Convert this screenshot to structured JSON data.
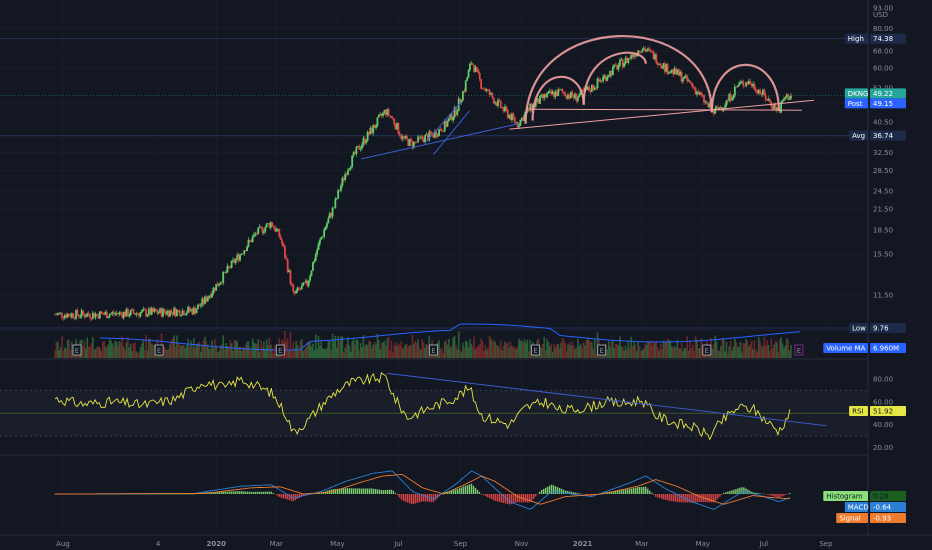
{
  "chart_data": [
    {
      "type": "candlestick",
      "symbol": "DKNG",
      "currency": "USD",
      "y_scale": "log",
      "ylim": [
        8.0,
        93.0
      ],
      "y_ticks": [
        "93.00",
        "80.00",
        "68.00",
        "60.00",
        "52.00",
        "46.50",
        "40.50",
        "36.50",
        "32.50",
        "28.50",
        "24.50",
        "21.50",
        "18.50",
        "15.50",
        "11.50",
        "8.90"
      ],
      "x_ticks": [
        "Aug",
        "4",
        "2020",
        "Mar",
        "May",
        "Jul",
        "Sep",
        "Nov",
        "2021",
        "Mar",
        "May",
        "Jul",
        "Sep"
      ],
      "markers": {
        "high": {
          "label": "High",
          "value": "74.38"
        },
        "low": {
          "label": "Low",
          "value": "9.76"
        },
        "avg": {
          "label": "Avg",
          "value": "36.74"
        },
        "last": {
          "label": "DKNG",
          "value": "49.22"
        },
        "post": {
          "label": "Post",
          "value": "49.15"
        }
      },
      "earnings_flags": [
        "E",
        "E",
        "E",
        "E",
        "E",
        "E",
        "E",
        "E"
      ],
      "close_series": [
        [
          "2019-07-24",
          10.0
        ],
        [
          "2019-09-01",
          10.0
        ],
        [
          "2019-10-15",
          10.1
        ],
        [
          "2019-11-15",
          10.2
        ],
        [
          "2019-12-10",
          10.3
        ],
        [
          "2019-12-20",
          11.0
        ],
        [
          "2020-01-05",
          12.8
        ],
        [
          "2020-01-25",
          15.5
        ],
        [
          "2020-02-10",
          18.0
        ],
        [
          "2020-02-25",
          19.5
        ],
        [
          "2020-03-05",
          17.5
        ],
        [
          "2020-03-18",
          11.5
        ],
        [
          "2020-04-01",
          12.5
        ],
        [
          "2020-04-15",
          17.5
        ],
        [
          "2020-04-28",
          22.0
        ],
        [
          "2020-05-10",
          28.5
        ],
        [
          "2020-05-22",
          33.5
        ],
        [
          "2020-06-05",
          38.5
        ],
        [
          "2020-06-18",
          44.0
        ],
        [
          "2020-06-25",
          41.5
        ],
        [
          "2020-07-05",
          36.0
        ],
        [
          "2020-07-15",
          34.5
        ],
        [
          "2020-07-25",
          36.0
        ],
        [
          "2020-08-05",
          37.0
        ],
        [
          "2020-08-18",
          40.0
        ],
        [
          "2020-08-28",
          44.5
        ],
        [
          "2020-09-05",
          52.0
        ],
        [
          "2020-09-12",
          63.0
        ],
        [
          "2020-09-22",
          53.0
        ],
        [
          "2020-10-05",
          47.5
        ],
        [
          "2020-10-15",
          44.0
        ],
        [
          "2020-10-28",
          40.0
        ],
        [
          "2020-11-10",
          45.0
        ],
        [
          "2020-11-25",
          49.0
        ],
        [
          "2020-12-10",
          50.5
        ],
        [
          "2020-12-25",
          48.5
        ],
        [
          "2021-01-10",
          52.0
        ],
        [
          "2021-01-25",
          57.0
        ],
        [
          "2021-02-05",
          61.0
        ],
        [
          "2021-02-15",
          64.0
        ],
        [
          "2021-03-01",
          70.0
        ],
        [
          "2021-03-12",
          66.0
        ],
        [
          "2021-03-25",
          60.0
        ],
        [
          "2021-04-08",
          57.0
        ],
        [
          "2021-04-20",
          53.0
        ],
        [
          "2021-05-05",
          46.0
        ],
        [
          "2021-05-12",
          43.5
        ],
        [
          "2021-05-25",
          47.0
        ],
        [
          "2021-06-05",
          53.0
        ],
        [
          "2021-06-15",
          54.5
        ],
        [
          "2021-06-25",
          51.5
        ],
        [
          "2021-07-08",
          46.5
        ],
        [
          "2021-07-16",
          44.0
        ],
        [
          "2021-07-22",
          48.5
        ],
        [
          "2021-07-28",
          49.2
        ]
      ],
      "volume_ma": {
        "label": "Volume MA",
        "value": "6.960M"
      }
    },
    {
      "type": "line",
      "name": "RSI",
      "ylim": [
        15,
        95
      ],
      "y_ticks": [
        "80.00",
        "60.00",
        "40.00",
        "20.00"
      ],
      "levels": [
        70,
        30
      ],
      "last": {
        "label": "RSI",
        "value": "51.92"
      },
      "values": [
        [
          "2019-07-24",
          63
        ],
        [
          "2019-08-20",
          58
        ],
        [
          "2019-09-20",
          60
        ],
        [
          "2019-10-20",
          57
        ],
        [
          "2019-11-20",
          62
        ],
        [
          "2019-12-20",
          78
        ],
        [
          "2020-01-10",
          72
        ],
        [
          "2020-01-25",
          80
        ],
        [
          "2020-02-10",
          74
        ],
        [
          "2020-02-25",
          68
        ],
        [
          "2020-03-10",
          50
        ],
        [
          "2020-03-18",
          33
        ],
        [
          "2020-04-01",
          43
        ],
        [
          "2020-04-15",
          57
        ],
        [
          "2020-05-01",
          70
        ],
        [
          "2020-05-15",
          77
        ],
        [
          "2020-06-05",
          80
        ],
        [
          "2020-06-18",
          82
        ],
        [
          "2020-06-28",
          62
        ],
        [
          "2020-07-10",
          46
        ],
        [
          "2020-07-25",
          52
        ],
        [
          "2020-08-10",
          58
        ],
        [
          "2020-08-25",
          63
        ],
        [
          "2020-09-10",
          72
        ],
        [
          "2020-09-22",
          48
        ],
        [
          "2020-10-05",
          44
        ],
        [
          "2020-10-20",
          40
        ],
        [
          "2020-11-05",
          55
        ],
        [
          "2020-11-25",
          60
        ],
        [
          "2020-12-10",
          52
        ],
        [
          "2021-01-05",
          55
        ],
        [
          "2021-01-25",
          60
        ],
        [
          "2021-02-10",
          58
        ],
        [
          "2021-03-01",
          62
        ],
        [
          "2021-03-15",
          48
        ],
        [
          "2021-04-01",
          42
        ],
        [
          "2021-04-20",
          38
        ],
        [
          "2021-05-08",
          30
        ],
        [
          "2021-05-20",
          43
        ],
        [
          "2021-06-05",
          55
        ],
        [
          "2021-06-20",
          54
        ],
        [
          "2021-07-05",
          42
        ],
        [
          "2021-07-16",
          34
        ],
        [
          "2021-07-28",
          52
        ]
      ]
    },
    {
      "type": "bar",
      "name": "MACD",
      "ylim": [
        -7,
        7
      ],
      "series": [
        {
          "name": "Histogram",
          "last": "0.28"
        },
        {
          "name": "MACD",
          "last": "-0.64"
        },
        {
          "name": "Signal",
          "last": "-0.93"
        }
      ],
      "macd": [
        [
          "2019-07-24",
          0
        ],
        [
          "2019-12-10",
          0.1
        ],
        [
          "2020-01-25",
          1.5
        ],
        [
          "2020-02-25",
          1.8
        ],
        [
          "2020-03-18",
          -0.8
        ],
        [
          "2020-04-15",
          0.5
        ],
        [
          "2020-05-10",
          2.5
        ],
        [
          "2020-06-05",
          4.0
        ],
        [
          "2020-06-25",
          4.5
        ],
        [
          "2020-07-15",
          0.5
        ],
        [
          "2020-08-05",
          -1.0
        ],
        [
          "2020-08-28",
          2.0
        ],
        [
          "2020-09-12",
          4.5
        ],
        [
          "2020-09-22",
          3.5
        ],
        [
          "2020-10-20",
          -1.5
        ],
        [
          "2020-11-10",
          -3.0
        ],
        [
          "2020-12-01",
          0.5
        ],
        [
          "2021-01-10",
          -0.5
        ],
        [
          "2021-02-15",
          2.0
        ],
        [
          "2021-03-05",
          3.5
        ],
        [
          "2021-03-25",
          1.0
        ],
        [
          "2021-04-20",
          -1.5
        ],
        [
          "2021-05-12",
          -3.0
        ],
        [
          "2021-06-10",
          0.5
        ],
        [
          "2021-07-01",
          -0.5
        ],
        [
          "2021-07-16",
          -1.5
        ],
        [
          "2021-07-28",
          -0.64
        ]
      ],
      "signal": [
        [
          "2019-07-24",
          0
        ],
        [
          "2019-12-20",
          0.1
        ],
        [
          "2020-02-05",
          1.2
        ],
        [
          "2020-03-05",
          1.4
        ],
        [
          "2020-03-28",
          0
        ],
        [
          "2020-04-25",
          0.4
        ],
        [
          "2020-05-20",
          2.0
        ],
        [
          "2020-06-15",
          3.5
        ],
        [
          "2020-07-05",
          3.8
        ],
        [
          "2020-07-25",
          1.2
        ],
        [
          "2020-08-15",
          0
        ],
        [
          "2020-09-05",
          1.8
        ],
        [
          "2020-09-22",
          3.5
        ],
        [
          "2020-10-05",
          2.5
        ],
        [
          "2020-10-28",
          -0.5
        ],
        [
          "2020-11-20",
          -2.0
        ],
        [
          "2020-12-15",
          -0.5
        ],
        [
          "2021-01-20",
          0
        ],
        [
          "2021-02-25",
          1.5
        ],
        [
          "2021-03-15",
          2.8
        ],
        [
          "2021-04-05",
          1.5
        ],
        [
          "2021-04-28",
          -0.5
        ],
        [
          "2021-05-22",
          -2.0
        ],
        [
          "2021-06-20",
          -0.3
        ],
        [
          "2021-07-10",
          -0.7
        ],
        [
          "2021-07-28",
          -0.93
        ]
      ]
    }
  ],
  "colors": {
    "bg": "#131722",
    "grid": "#1e222d",
    "up": "#26a69a",
    "down": "#ef5350",
    "upCandle": "#5fd068",
    "downCandle": "#e04848",
    "axisText": "#8a8e99",
    "trend": "#3d5fd8",
    "pattern": "#f0a0a0",
    "rsi": "#e6e644",
    "macd": "#2b7fd6",
    "signal": "#ef7b2f",
    "highTag": "#2962ff",
    "lastTag": "#26a69a",
    "postTag": "#2962ff",
    "avgTag": "#1e3a8a",
    "histUp": "#89e07a",
    "histDown": "#ef4a4a",
    "volMA": "#2962ff",
    "earnings": "#b2b5be",
    "earningsLast": "#9c27b0"
  }
}
